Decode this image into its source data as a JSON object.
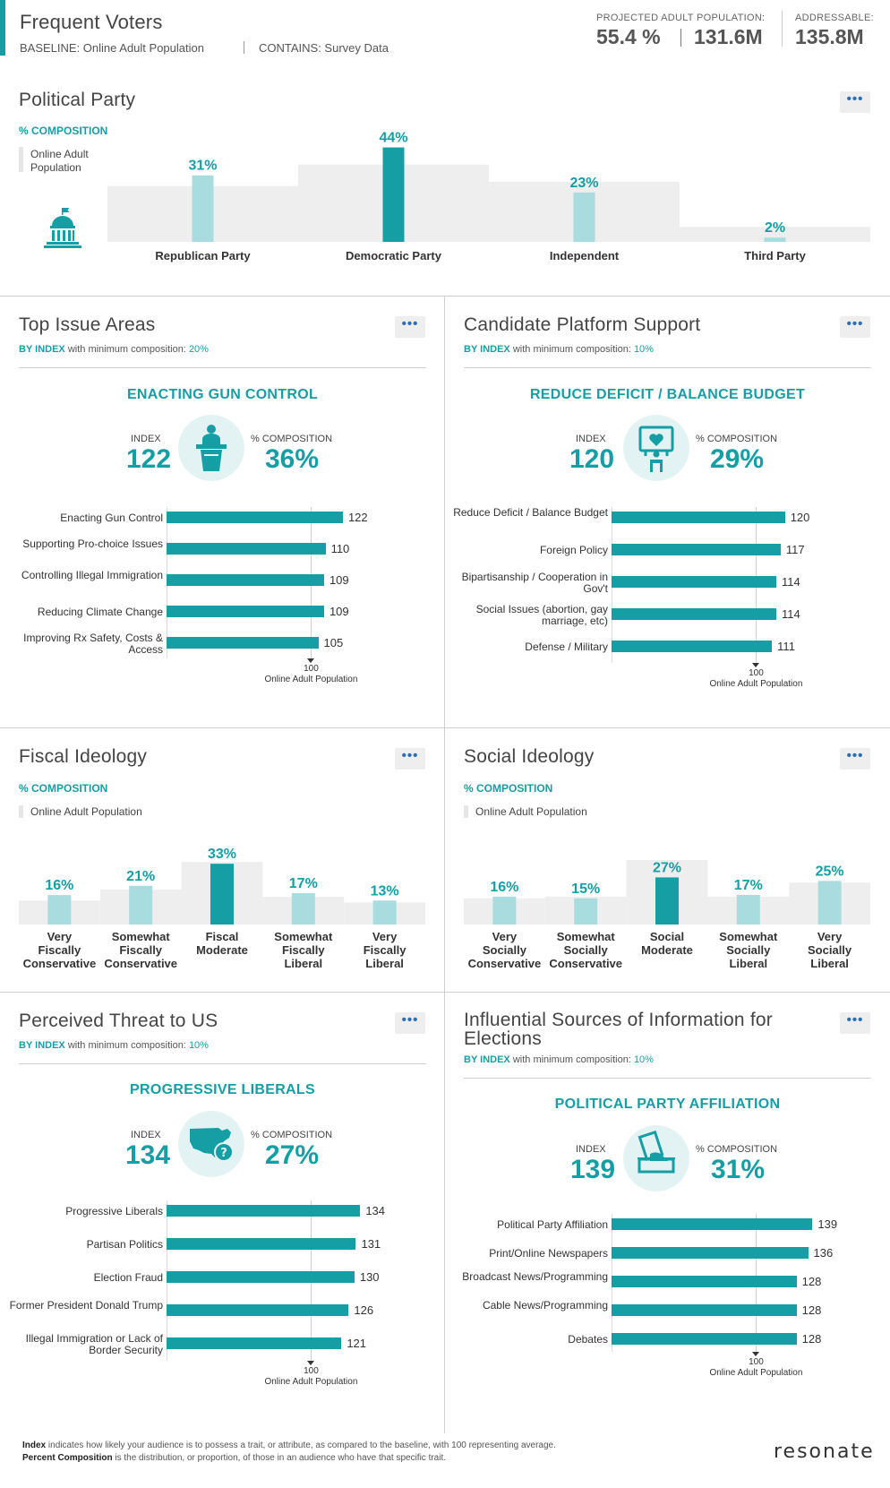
{
  "header": {
    "title": "Frequent Voters",
    "baseline": "BASELINE: Online Adult Population",
    "contains": "CONTAINS: Survey Data",
    "projected_label": "PROJECTED ADULT POPULATION:",
    "projected_pct": "55.4 %",
    "projected_count": "131.6M",
    "addressable_label": "ADDRESSABLE:",
    "addressable_count": "135.8M"
  },
  "colors": {
    "accent": "#159ea3",
    "light_accent": "#a8dcdf",
    "baseline_gray": "#eeeeee"
  },
  "more_button": "•••",
  "political_party": {
    "title": "Political Party",
    "subtitle": "% COMPOSITION",
    "legend": "Online Adult Population",
    "icon": "capitol-icon",
    "chart_data": {
      "type": "bar",
      "title": "Political Party",
      "categories": [
        "Republican Party",
        "Democratic Party",
        "Independent",
        "Third Party"
      ],
      "values": [
        31,
        44,
        23,
        2
      ],
      "labels": [
        "31%",
        "44%",
        "23%",
        "2%"
      ],
      "baseline": [
        26,
        36,
        28,
        7
      ],
      "highlight_index": 1,
      "ylim": [
        0,
        48
      ]
    }
  },
  "top_issues": {
    "title": "Top Issue Areas",
    "by": "BY INDEX",
    "min_text": "with minimum composition:",
    "min_value": "20%",
    "hero": "ENACTING GUN CONTROL",
    "index_label": "INDEX",
    "index_value": "122",
    "comp_label": "% COMPOSITION",
    "comp_value": "36%",
    "icon": "podium-icon",
    "ref_value": "100",
    "ref_label": "Online Adult Population",
    "chart_data": {
      "type": "bar",
      "orientation": "horizontal",
      "categories": [
        "Enacting Gun Control",
        "Supporting Pro-choice Issues",
        "Controlling Illegal Immigration",
        "Reducing Climate Change",
        "Improving Rx Safety, Costs & Access"
      ],
      "values": [
        122,
        110,
        109,
        109,
        105
      ],
      "reference": 100
    }
  },
  "candidate_platform": {
    "title": "Candidate Platform Support",
    "by": "BY INDEX",
    "min_text": "with minimum composition:",
    "min_value": "10%",
    "hero": "REDUCE DEFICIT / BALANCE BUDGET",
    "index_label": "INDEX",
    "index_value": "120",
    "comp_label": "% COMPOSITION",
    "comp_value": "29%",
    "icon": "heart-sign-icon",
    "ref_value": "100",
    "ref_label": "Online Adult Population",
    "chart_data": {
      "type": "bar",
      "orientation": "horizontal",
      "categories": [
        "Reduce Deficit / Balance Budget",
        "Foreign Policy",
        "Bipartisanship / Cooperation in Gov't",
        "Social Issues (abortion, gay marriage, etc)",
        "Defense / Military"
      ],
      "values": [
        120,
        117,
        114,
        114,
        111
      ],
      "reference": 100
    }
  },
  "fiscal_ideology": {
    "title": "Fiscal Ideology",
    "subtitle": "% COMPOSITION",
    "legend": "Online Adult Population",
    "chart_data": {
      "type": "bar",
      "categories": [
        "Very Fiscally Conservative",
        "Somewhat Fiscally Conservative",
        "Fiscal Moderate",
        "Somewhat Fiscally Liberal",
        "Very Fiscally Liberal"
      ],
      "values": [
        16,
        21,
        33,
        17,
        13
      ],
      "labels": [
        "16%",
        "21%",
        "33%",
        "17%",
        "13%"
      ],
      "baseline": [
        13,
        19,
        34,
        15,
        12
      ],
      "highlight_index": 2,
      "ylim": [
        0,
        36
      ]
    }
  },
  "social_ideology": {
    "title": "Social Ideology",
    "subtitle": "% COMPOSITION",
    "legend": "Online Adult Population",
    "chart_data": {
      "type": "bar",
      "categories": [
        "Very Socially Conservative",
        "Somewhat Socially Conservative",
        "Social Moderate",
        "Somewhat Socially Liberal",
        "Very Socially Liberal"
      ],
      "values": [
        16,
        15,
        27,
        17,
        25
      ],
      "labels": [
        "16%",
        "15%",
        "27%",
        "17%",
        "25%"
      ],
      "baseline": [
        15,
        16,
        37,
        16,
        24
      ],
      "highlight_index": 2,
      "ylim": [
        0,
        38
      ]
    }
  },
  "perceived_threat": {
    "title": "Perceived Threat to US",
    "by": "BY INDEX",
    "min_text": "with minimum composition:",
    "min_value": "10%",
    "hero": "PROGRESSIVE LIBERALS",
    "index_label": "INDEX",
    "index_value": "134",
    "comp_label": "% COMPOSITION",
    "comp_value": "27%",
    "icon": "us-map-question-icon",
    "ref_value": "100",
    "ref_label": "Online Adult Population",
    "chart_data": {
      "type": "bar",
      "orientation": "horizontal",
      "categories": [
        "Progressive Liberals",
        "Partisan Politics",
        "Election Fraud",
        "Former President Donald Trump",
        "Illegal Immigration or Lack of Border Security"
      ],
      "values": [
        134,
        131,
        130,
        126,
        121
      ],
      "reference": 100
    }
  },
  "influential_sources": {
    "title": "Influential Sources of Information for Elections",
    "by": "BY INDEX",
    "min_text": "with minimum composition:",
    "min_value": "10%",
    "hero": "POLITICAL PARTY AFFILIATION",
    "index_label": "INDEX",
    "index_value": "139",
    "comp_label": "% COMPOSITION",
    "comp_value": "31%",
    "icon": "ballot-box-icon",
    "ref_value": "100",
    "ref_label": "Online Adult Population",
    "chart_data": {
      "type": "bar",
      "orientation": "horizontal",
      "categories": [
        "Political Party Affiliation",
        "Print/Online Newspapers",
        "Broadcast News/Programming",
        "Cable News/Programming",
        "Debates"
      ],
      "values": [
        139,
        136,
        128,
        128,
        128
      ],
      "reference": 100
    }
  },
  "footer": {
    "index_term": "Index",
    "index_def": "indicates how likely your audience is to possess a trait, or attribute, as compared to the baseline, with 100 representing average.",
    "comp_term": "Percent Composition",
    "comp_def": "is the distribution, or proportion, of those in an audience who have that specific trait.",
    "brand": "resonate"
  }
}
